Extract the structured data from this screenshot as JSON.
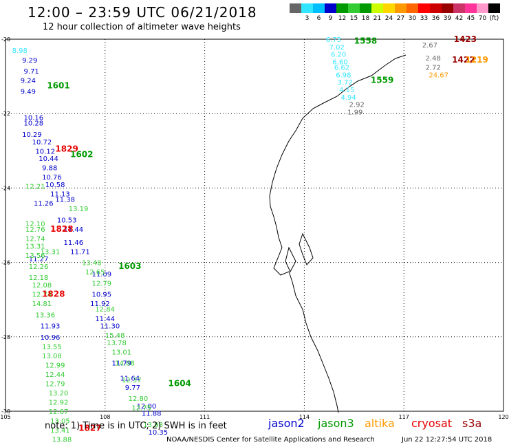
{
  "title": "12:00 – 23:59 UTC 06/21/2018",
  "subtitle": "12 hour collection of altimeter wave heights",
  "color_scale": {
    "colors": [
      "#666666",
      "#33e6ff",
      "#00bfff",
      "#0000cc",
      "#009900",
      "#33cc33",
      "#009900",
      "#ccff00",
      "#ffd700",
      "#ff9900",
      "#ff6600",
      "#ff0000",
      "#cc0000",
      "#990000",
      "#cc3366",
      "#ff3399",
      "#ff99cc",
      "#000000"
    ],
    "labels": [
      "",
      "3",
      "6",
      "9",
      "12",
      "15",
      "18",
      "21",
      "24",
      "27",
      "30",
      "33",
      "36",
      "39",
      "42",
      "45",
      "70",
      "(ft)"
    ]
  },
  "note": "note:  1) Time is in UTC;  2) SWH is in feet",
  "legend": [
    {
      "name": "jason2",
      "color": "#0000cc"
    },
    {
      "name": "jason3",
      "color": "#009900"
    },
    {
      "name": "altika",
      "color": "#ff9900"
    },
    {
      "name": "cryosat",
      "color": "#e60000"
    },
    {
      "name": "s3a",
      "color": "#990000"
    }
  ],
  "footer_left": "NOAA/NESDIS Center for Satellite Applications and Research",
  "footer_right": "Jun 22 12:27:54 UTC 2018",
  "chart_data": {
    "type": "scatter",
    "xlim": [
      105,
      120
    ],
    "ylim": [
      -30,
      -20
    ],
    "xticks": [
      "105",
      "108",
      "111",
      "114",
      "117",
      "120"
    ],
    "yticks": [
      "-20",
      "-22",
      "-24",
      "-26",
      "-28",
      "-30"
    ],
    "grid": true,
    "series": [
      {
        "name": "jason2",
        "color": "#0000cc",
        "points": [
          {
            "lon": 105.5,
            "lat": -20.55,
            "label": "9.29"
          },
          {
            "lon": 105.55,
            "lat": -20.85,
            "label": "9.71"
          },
          {
            "lon": 105.45,
            "lat": -21.1,
            "label": "9.24"
          },
          {
            "lon": 105.45,
            "lat": -21.4,
            "label": "9.49"
          },
          {
            "lon": 105.55,
            "lat": -22.1,
            "label": "10.16"
          },
          {
            "lon": 105.55,
            "lat": -22.25,
            "label": "10.28"
          },
          {
            "lon": 105.5,
            "lat": -22.55,
            "label": "10.29"
          },
          {
            "lon": 105.8,
            "lat": -22.75,
            "label": "10.72"
          },
          {
            "lon": 105.9,
            "lat": -23.0,
            "label": "10.12"
          },
          {
            "lon": 106.0,
            "lat": -23.2,
            "label": "10.44"
          },
          {
            "lon": 106.1,
            "lat": -23.45,
            "label": "9.88"
          },
          {
            "lon": 106.1,
            "lat": -23.7,
            "label": "10.76"
          },
          {
            "lon": 106.2,
            "lat": -23.9,
            "label": "10.58"
          },
          {
            "lon": 106.35,
            "lat": -24.15,
            "label": "11.13"
          },
          {
            "lon": 106.5,
            "lat": -24.3,
            "label": "11.38"
          },
          {
            "lon": 105.85,
            "lat": -24.4,
            "label": "11.26"
          },
          {
            "lon": 106.55,
            "lat": -24.85,
            "label": "10.53"
          },
          {
            "lon": 106.75,
            "lat": -25.1,
            "label": "11.44"
          },
          {
            "lon": 106.75,
            "lat": -25.45,
            "label": "11.46"
          },
          {
            "lon": 106.95,
            "lat": -25.7,
            "label": "11.71"
          },
          {
            "lon": 105.7,
            "lat": -25.9,
            "label": "11.27"
          },
          {
            "lon": 107.6,
            "lat": -26.3,
            "label": "11.09"
          },
          {
            "lon": 107.6,
            "lat": -26.85,
            "label": "10.95"
          },
          {
            "lon": 107.55,
            "lat": -27.1,
            "label": "11.92"
          },
          {
            "lon": 107.7,
            "lat": -27.5,
            "label": "11.44"
          },
          {
            "lon": 107.85,
            "lat": -27.7,
            "label": "11.30"
          },
          {
            "lon": 106.05,
            "lat": -27.7,
            "label": "11.93"
          },
          {
            "lon": 106.05,
            "lat": -28.0,
            "label": "10.96"
          },
          {
            "lon": 108.2,
            "lat": -28.7,
            "label": "11.79"
          },
          {
            "lon": 108.45,
            "lat": -29.1,
            "label": "11.64"
          },
          {
            "lon": 108.6,
            "lat": -29.35,
            "label": "9.77"
          },
          {
            "lon": 108.95,
            "lat": -29.85,
            "label": "12.00"
          },
          {
            "lon": 109.1,
            "lat": -30.05,
            "label": "11.88"
          },
          {
            "lon": 109.3,
            "lat": -30.55,
            "label": "10.35"
          }
        ]
      },
      {
        "name": "jason3",
        "color": "#009900",
        "points": [
          {
            "lon": 115.5,
            "lat": -20.05,
            "label": "1558"
          },
          {
            "lon": 116.0,
            "lat": -21.1,
            "label": "1559"
          },
          {
            "lon": 106.25,
            "lat": -21.25,
            "label": "1601"
          },
          {
            "lon": 106.95,
            "lat": -23.1,
            "label": "1602"
          },
          {
            "lon": 108.4,
            "lat": -26.1,
            "label": "1603"
          },
          {
            "lon": 109.9,
            "lat": -29.25,
            "label": "1604"
          }
        ]
      },
      {
        "name": "jason3-swh",
        "color": "#33cc33",
        "points": [
          {
            "lon": 105.6,
            "lat": -24.95,
            "label": "12.10"
          },
          {
            "lon": 105.6,
            "lat": -25.1,
            "label": "12.76"
          },
          {
            "lon": 105.6,
            "lat": -25.35,
            "label": "12.74"
          },
          {
            "lon": 105.6,
            "lat": -25.55,
            "label": "13.31"
          },
          {
            "lon": 105.6,
            "lat": -25.8,
            "label": "13.56"
          },
          {
            "lon": 105.7,
            "lat": -26.1,
            "label": "12.26"
          },
          {
            "lon": 105.7,
            "lat": -26.4,
            "label": "12.18"
          },
          {
            "lon": 105.8,
            "lat": -26.6,
            "label": "12.08"
          },
          {
            "lon": 105.8,
            "lat": -26.85,
            "label": "12.74"
          },
          {
            "lon": 105.8,
            "lat": -27.1,
            "label": "14.81"
          },
          {
            "lon": 105.9,
            "lat": -27.4,
            "label": "13.36"
          },
          {
            "lon": 106.1,
            "lat": -28.25,
            "label": "13.55"
          },
          {
            "lon": 106.1,
            "lat": -28.5,
            "label": "13.08"
          },
          {
            "lon": 106.2,
            "lat": -28.75,
            "label": "12.99"
          },
          {
            "lon": 106.2,
            "lat": -29.0,
            "label": "12.44"
          },
          {
            "lon": 106.2,
            "lat": -29.25,
            "label": "12.79"
          },
          {
            "lon": 106.3,
            "lat": -29.5,
            "label": "13.20"
          },
          {
            "lon": 106.3,
            "lat": -29.75,
            "label": "12.92"
          },
          {
            "lon": 106.3,
            "lat": -30.0,
            "label": "12.67"
          },
          {
            "lon": 106.35,
            "lat": -30.25,
            "label": "13.05"
          },
          {
            "lon": 106.35,
            "lat": -30.5,
            "label": "13.41"
          },
          {
            "lon": 106.4,
            "lat": -30.75,
            "label": "13.88"
          },
          {
            "lon": 106.9,
            "lat": -24.55,
            "label": "13.19"
          },
          {
            "lon": 107.3,
            "lat": -26.0,
            "label": "13.48"
          },
          {
            "lon": 107.4,
            "lat": -26.25,
            "label": "12.65"
          },
          {
            "lon": 107.6,
            "lat": -26.55,
            "label": "12.79"
          },
          {
            "lon": 107.7,
            "lat": -27.25,
            "label": "12.84"
          },
          {
            "lon": 108.0,
            "lat": -27.95,
            "label": "15.48"
          },
          {
            "lon": 108.05,
            "lat": -28.15,
            "label": "13.78"
          },
          {
            "lon": 108.2,
            "lat": -28.4,
            "label": "13.01"
          },
          {
            "lon": 108.3,
            "lat": -28.7,
            "label": "14.08"
          },
          {
            "lon": 108.5,
            "lat": -29.15,
            "label": "12.37"
          },
          {
            "lon": 108.7,
            "lat": -29.65,
            "label": "12.80"
          },
          {
            "lon": 108.8,
            "lat": -29.9,
            "label": "12.75"
          },
          {
            "lon": 109.15,
            "lat": -30.35,
            "label": "13.98"
          },
          {
            "lon": 105.6,
            "lat": -23.95,
            "label": "12.21"
          },
          {
            "lon": 106.05,
            "lat": -25.7,
            "label": "13.31"
          }
        ]
      },
      {
        "name": "cryosat",
        "color": "#e60000",
        "points": [
          {
            "lon": 106.5,
            "lat": -22.95,
            "label": "1829"
          },
          {
            "lon": 106.35,
            "lat": -25.1,
            "label": "1828"
          },
          {
            "lon": 106.1,
            "lat": -26.85,
            "label": "1828"
          },
          {
            "lon": 107.2,
            "lat": -30.45,
            "label": "1827"
          }
        ]
      },
      {
        "name": "s3a",
        "color": "#990000",
        "points": [
          {
            "lon": 118.5,
            "lat": -20.0,
            "label": "1423"
          },
          {
            "lon": 118.45,
            "lat": -20.55,
            "label": "1422"
          }
        ]
      },
      {
        "name": "altika",
        "color": "#ff9900",
        "points": [
          {
            "lon": 118.85,
            "lat": -20.55,
            "label": "1219"
          },
          {
            "lon": 117.75,
            "lat": -20.95,
            "label": "24.67"
          }
        ]
      },
      {
        "name": "other",
        "color": "#33e6ff",
        "points": [
          {
            "lon": 105.2,
            "lat": -20.3,
            "label": "8.98"
          },
          {
            "lon": 114.65,
            "lat": -20.0,
            "label": "6.73"
          },
          {
            "lon": 114.75,
            "lat": -20.2,
            "label": "7.02"
          },
          {
            "lon": 114.8,
            "lat": -20.4,
            "label": "6.20"
          },
          {
            "lon": 114.85,
            "lat": -20.6,
            "label": "6.60"
          },
          {
            "lon": 114.9,
            "lat": -20.75,
            "label": "6.62"
          },
          {
            "lon": 114.95,
            "lat": -20.95,
            "label": "6.98"
          },
          {
            "lon": 115.0,
            "lat": -21.15,
            "label": "3.72"
          },
          {
            "lon": 115.05,
            "lat": -21.35,
            "label": "4.15"
          },
          {
            "lon": 115.1,
            "lat": -21.55,
            "label": "4.94"
          }
        ]
      },
      {
        "name": "gray",
        "color": "#666666",
        "points": [
          {
            "lon": 115.35,
            "lat": -21.75,
            "label": "2.92"
          },
          {
            "lon": 115.3,
            "lat": -21.95,
            "label": "1.99"
          },
          {
            "lon": 117.55,
            "lat": -20.15,
            "label": "2.67"
          },
          {
            "lon": 117.65,
            "lat": -20.5,
            "label": "2.48"
          },
          {
            "lon": 117.65,
            "lat": -20.75,
            "label": "2.72"
          }
        ]
      }
    ]
  }
}
